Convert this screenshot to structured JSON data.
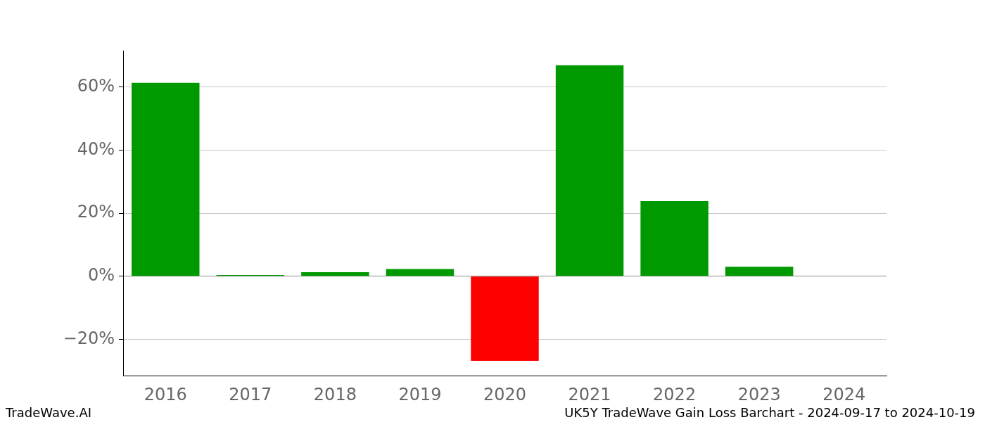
{
  "chart_data": {
    "type": "bar",
    "footer_left": "TradeWave.AI",
    "footer_right": "UK5Y TradeWave Gain Loss Barchart - 2024-09-17 to 2024-10-19",
    "categories": [
      "2016",
      "2017",
      "2018",
      "2019",
      "2020",
      "2021",
      "2022",
      "2023",
      "2024"
    ],
    "values": [
      61.3,
      0.4,
      1.3,
      2.3,
      -26.8,
      66.9,
      23.8,
      3.0,
      null
    ],
    "colors": [
      "#009900",
      "#009900",
      "#009900",
      "#009900",
      "#ff0000",
      "#009900",
      "#009900",
      "#009900",
      "#009900"
    ],
    "ylim": [
      -31.5,
      71.5
    ],
    "yticks": [
      {
        "value": -20,
        "label": "−20%"
      },
      {
        "value": 0,
        "label": "0%"
      },
      {
        "value": 20,
        "label": "20%"
      },
      {
        "value": 40,
        "label": "40%"
      },
      {
        "value": 60,
        "label": "60%"
      }
    ],
    "grid": true
  }
}
